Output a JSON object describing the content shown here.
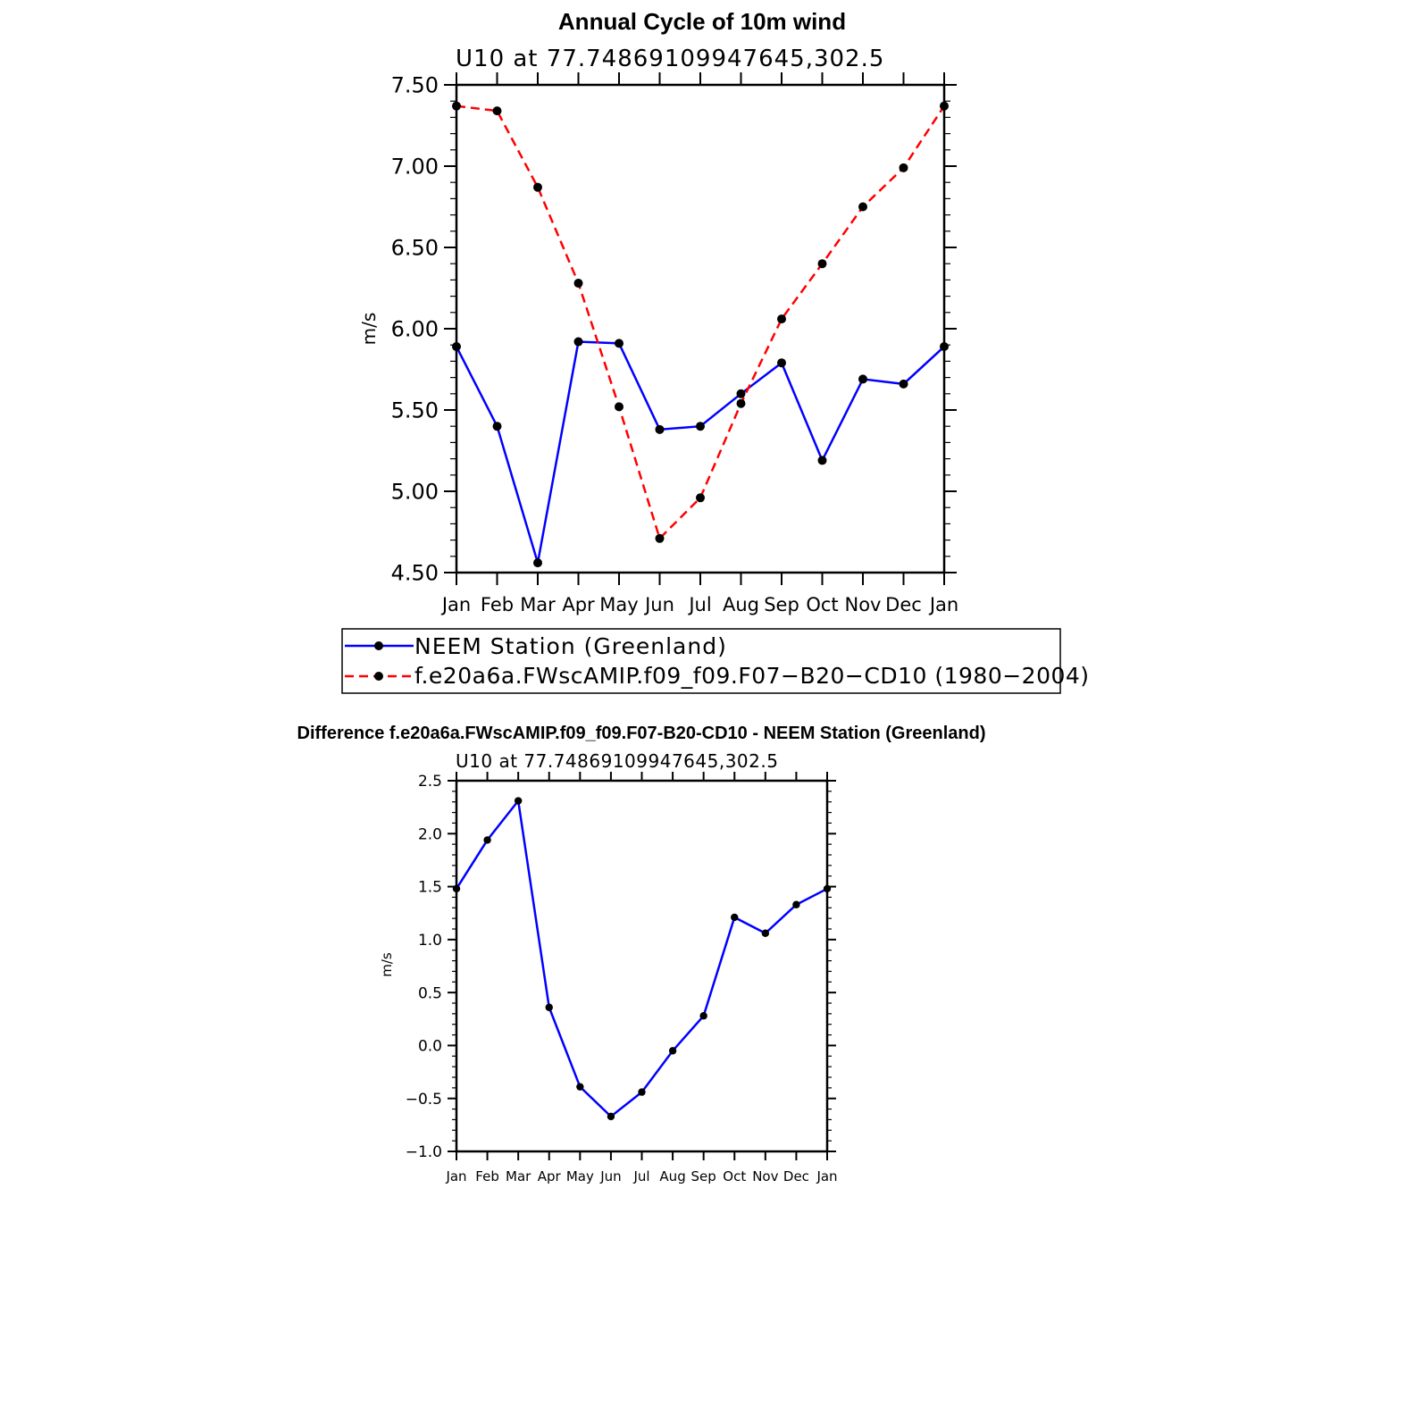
{
  "chart_data": [
    {
      "type": "line",
      "title": "Annual Cycle of 10m wind",
      "subtitle": "U10 at 77.74869109947645,302.5",
      "ylabel": "m/s",
      "xlabel": "",
      "categories": [
        "Jan",
        "Feb",
        "Mar",
        "Apr",
        "May",
        "Jun",
        "Jul",
        "Aug",
        "Sep",
        "Oct",
        "Nov",
        "Dec",
        "Jan"
      ],
      "ylim": [
        4.5,
        7.5
      ],
      "yticks": [
        "4.50",
        "5.00",
        "5.50",
        "6.00",
        "6.50",
        "7.00",
        "7.50"
      ],
      "series": [
        {
          "name": "NEEM Station (Greenland)",
          "color": "#0000ff",
          "dash": "solid",
          "values": [
            5.89,
            5.4,
            4.56,
            5.92,
            5.91,
            5.38,
            5.4,
            5.6,
            5.79,
            5.19,
            5.69,
            5.66,
            5.89
          ]
        },
        {
          "name": "f.e20a6a.FWscAMIP.f09_f09.F07−B20−CD10 (1980−2004)",
          "color": "#ff0000",
          "dash": "dashed",
          "values": [
            7.37,
            7.34,
            6.87,
            6.28,
            5.52,
            4.71,
            4.96,
            5.54,
            6.06,
            6.4,
            6.75,
            6.99,
            7.37
          ]
        }
      ]
    },
    {
      "type": "line",
      "title": "Difference f.e20a6a.FWscAMIP.f09_f09.F07-B20-CD10 - NEEM Station (Greenland)",
      "subtitle": "U10 at 77.74869109947645,302.5",
      "ylabel": "m/s",
      "xlabel": "",
      "categories": [
        "Jan",
        "Feb",
        "Mar",
        "Apr",
        "May",
        "Jun",
        "Jul",
        "Aug",
        "Sep",
        "Oct",
        "Nov",
        "Dec",
        "Jan"
      ],
      "ylim": [
        -1.0,
        2.5
      ],
      "yticks": [
        "−1.0",
        "−0.5",
        "0.0",
        "0.5",
        "1.0",
        "1.5",
        "2.0",
        "2.5"
      ],
      "series": [
        {
          "color": "#0000ff",
          "dash": "solid",
          "values": [
            1.48,
            1.94,
            2.31,
            0.36,
            -0.39,
            -0.67,
            -0.44,
            -0.05,
            0.28,
            1.21,
            1.06,
            1.33,
            1.48
          ]
        }
      ]
    }
  ]
}
